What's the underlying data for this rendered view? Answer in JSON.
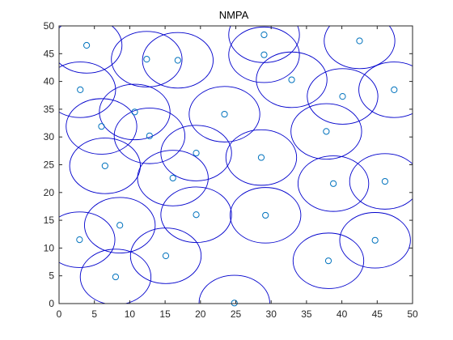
{
  "chart_data": {
    "type": "scatter",
    "title": "NMPA",
    "xlabel": "",
    "ylabel": "",
    "xlim": [
      0,
      50
    ],
    "ylim": [
      0,
      50
    ],
    "x_ticks": [
      0,
      5,
      10,
      15,
      20,
      25,
      30,
      35,
      40,
      45,
      50
    ],
    "y_ticks": [
      0,
      5,
      10,
      15,
      20,
      25,
      30,
      35,
      40,
      45,
      50
    ],
    "grid": false,
    "box": true,
    "coverage_radius": 5,
    "colors": {
      "marker": "#0072BD",
      "circle": "#0000CC",
      "axes": "#262626"
    },
    "series": [
      {
        "marker": "o",
        "filled": false,
        "points": [
          {
            "x": 3.9,
            "y": 46.5
          },
          {
            "x": 12.4,
            "y": 44.0
          },
          {
            "x": 16.8,
            "y": 43.8
          },
          {
            "x": 29.0,
            "y": 48.4
          },
          {
            "x": 29.0,
            "y": 44.8
          },
          {
            "x": 42.5,
            "y": 47.3
          },
          {
            "x": 3.0,
            "y": 38.5
          },
          {
            "x": 32.9,
            "y": 40.3
          },
          {
            "x": 40.1,
            "y": 37.3
          },
          {
            "x": 47.4,
            "y": 38.5
          },
          {
            "x": 10.7,
            "y": 34.5
          },
          {
            "x": 23.4,
            "y": 34.1
          },
          {
            "x": 6.0,
            "y": 31.9
          },
          {
            "x": 12.8,
            "y": 30.2
          },
          {
            "x": 37.8,
            "y": 31.0
          },
          {
            "x": 19.4,
            "y": 27.1
          },
          {
            "x": 28.6,
            "y": 26.3
          },
          {
            "x": 6.5,
            "y": 24.8
          },
          {
            "x": 16.1,
            "y": 22.6
          },
          {
            "x": 38.8,
            "y": 21.6
          },
          {
            "x": 46.1,
            "y": 22.0
          },
          {
            "x": 19.4,
            "y": 16.0
          },
          {
            "x": 29.2,
            "y": 15.9
          },
          {
            "x": 8.6,
            "y": 14.1
          },
          {
            "x": 2.9,
            "y": 11.5
          },
          {
            "x": 44.7,
            "y": 11.4
          },
          {
            "x": 15.1,
            "y": 8.6
          },
          {
            "x": 38.1,
            "y": 7.7
          },
          {
            "x": 8.0,
            "y": 4.8
          },
          {
            "x": 24.8,
            "y": 0.1
          }
        ]
      }
    ]
  }
}
